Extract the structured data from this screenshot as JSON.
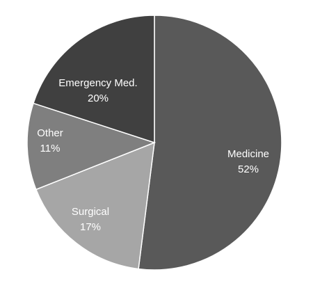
{
  "chart_data": {
    "type": "pie",
    "slices": [
      {
        "label": "Medicine",
        "value": 52,
        "value_label": "52%",
        "color": "#595959"
      },
      {
        "label": "Surgical",
        "value": 17,
        "value_label": "17%",
        "color": "#a6a6a6"
      },
      {
        "label": "Other",
        "value": 11,
        "value_label": "11%",
        "color": "#7f7f7f"
      },
      {
        "label": "Emergency Med.",
        "value": 20,
        "value_label": "20%",
        "color": "#404040"
      }
    ],
    "start_position": "top",
    "direction": "clockwise",
    "label_color": "#ffffff"
  }
}
